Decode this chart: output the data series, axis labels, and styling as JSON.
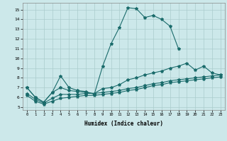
{
  "bg_color": "#cce8ea",
  "grid_color": "#aacccc",
  "line_color": "#1a6b6b",
  "xlim": [
    -0.5,
    23.5
  ],
  "ylim": [
    4.7,
    15.7
  ],
  "xticks": [
    0,
    1,
    2,
    3,
    4,
    5,
    6,
    7,
    8,
    9,
    10,
    11,
    12,
    13,
    14,
    15,
    16,
    17,
    18,
    19,
    20,
    21,
    22,
    23
  ],
  "yticks": [
    5,
    6,
    7,
    8,
    9,
    10,
    11,
    12,
    13,
    14,
    15
  ],
  "xlabel": "Humidex (Indice chaleur)",
  "series": {
    "main_x": [
      0,
      1,
      2,
      3,
      4,
      5,
      6,
      7,
      8,
      9,
      10,
      11,
      12,
      13,
      14,
      15,
      16,
      17,
      18
    ],
    "main_y": [
      7.0,
      6.0,
      5.5,
      6.5,
      8.2,
      7.0,
      6.7,
      6.6,
      6.3,
      9.2,
      11.5,
      13.2,
      15.2,
      15.1,
      14.2,
      14.4,
      14.0,
      13.3,
      11.0
    ],
    "line2_x": [
      0,
      1,
      2,
      3,
      4,
      5,
      6,
      7,
      8,
      9,
      10,
      11,
      12,
      13,
      14,
      15,
      16,
      17,
      18,
      19,
      20,
      21,
      22,
      23
    ],
    "line2_y": [
      7.0,
      6.0,
      5.5,
      6.5,
      7.0,
      6.7,
      6.6,
      6.5,
      6.4,
      6.9,
      7.0,
      7.3,
      7.8,
      8.0,
      8.3,
      8.5,
      8.7,
      9.0,
      9.2,
      9.5,
      8.8,
      9.2,
      8.5,
      8.3
    ],
    "line3_x": [
      0,
      1,
      2,
      3,
      4,
      5,
      6,
      7,
      8,
      9,
      10,
      11,
      12,
      13,
      14,
      15,
      16,
      17,
      18,
      19,
      20,
      21,
      22,
      23
    ],
    "line3_y": [
      6.4,
      5.8,
      5.4,
      5.9,
      6.3,
      6.3,
      6.3,
      6.4,
      6.4,
      6.5,
      6.6,
      6.7,
      6.9,
      7.0,
      7.2,
      7.4,
      7.5,
      7.7,
      7.8,
      7.9,
      8.0,
      8.1,
      8.2,
      8.3
    ],
    "line4_x": [
      0,
      1,
      2,
      3,
      4,
      5,
      6,
      7,
      8,
      9,
      10,
      11,
      12,
      13,
      14,
      15,
      16,
      17,
      18,
      19,
      20,
      21,
      22,
      23
    ],
    "line4_y": [
      6.2,
      5.6,
      5.3,
      5.6,
      5.9,
      6.0,
      6.1,
      6.2,
      6.2,
      6.3,
      6.4,
      6.5,
      6.7,
      6.8,
      7.0,
      7.2,
      7.3,
      7.5,
      7.6,
      7.7,
      7.8,
      7.9,
      8.0,
      8.1
    ]
  }
}
